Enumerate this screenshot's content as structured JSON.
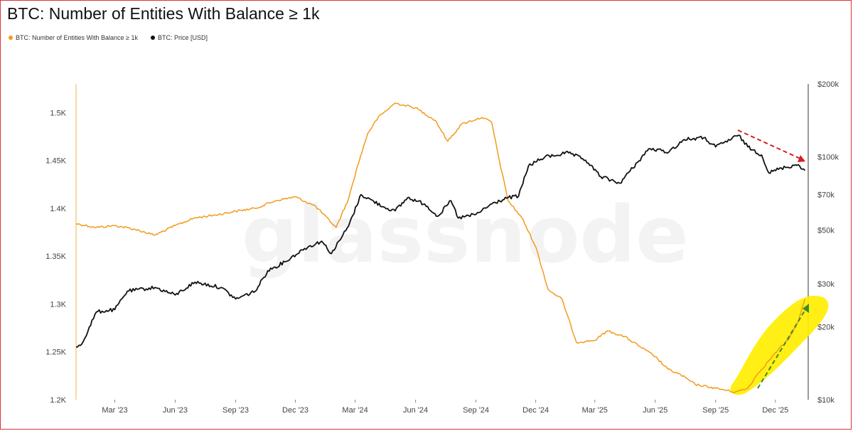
{
  "title": "BTC: Number of Entities With Balance ≥ 1k",
  "watermark": "glassnode",
  "legend": [
    {
      "label": "BTC: Number of Entities With Balance ≥ 1k",
      "color": "#f29a1d"
    },
    {
      "label": "BTC: Price [USD]",
      "color": "#111111"
    }
  ],
  "chart_data": {
    "type": "line",
    "title": "BTC: Number of Entities With Balance ≥ 1k",
    "x_ticks": [
      "Mar '23",
      "Jun '23",
      "Sep '23",
      "Dec '23",
      "Mar '24",
      "Jun '24",
      "Sep '24",
      "Dec '24",
      "Mar '25",
      "Jun '25",
      "Sep '25",
      "Dec '25"
    ],
    "x_range": [
      "2023-01-01",
      "2026-01-20"
    ],
    "y_left": {
      "ticks": [
        "1.2K",
        "1.25K",
        "1.3K",
        "1.35K",
        "1.4K",
        "1.45K",
        "1.5K"
      ],
      "values": [
        1200,
        1250,
        1300,
        1350,
        1400,
        1450,
        1500
      ],
      "range": [
        1200,
        1530
      ]
    },
    "y_right": {
      "ticks": [
        "$10k",
        "$20k",
        "$30k",
        "$50k",
        "$70k",
        "$100k",
        "$200k"
      ],
      "values": [
        10000,
        20000,
        30000,
        50000,
        70000,
        100000,
        200000
      ],
      "scale": "log",
      "range": [
        10000,
        200000
      ]
    },
    "series": [
      {
        "name": "BTC: Number of Entities With Balance ≥ 1k",
        "axis": "left",
        "color": "#f29a1d",
        "x": [
          "2023-01-01",
          "2023-02-01",
          "2023-03-01",
          "2023-04-01",
          "2023-05-01",
          "2023-06-01",
          "2023-07-01",
          "2023-08-01",
          "2023-09-01",
          "2023-10-01",
          "2023-11-01",
          "2023-12-01",
          "2024-01-01",
          "2024-02-01",
          "2024-02-20",
          "2024-03-05",
          "2024-03-20",
          "2024-04-05",
          "2024-05-01",
          "2024-06-01",
          "2024-07-01",
          "2024-07-20",
          "2024-08-10",
          "2024-09-10",
          "2024-09-25",
          "2024-10-05",
          "2024-10-20",
          "2024-11-10",
          "2024-12-01",
          "2024-12-20",
          "2025-01-10",
          "2025-02-01",
          "2025-03-01",
          "2025-03-20",
          "2025-04-15",
          "2025-05-10",
          "2025-06-01",
          "2025-06-20",
          "2025-07-10",
          "2025-08-01",
          "2025-09-01",
          "2025-10-01",
          "2025-10-20",
          "2025-11-05",
          "2025-11-20",
          "2025-12-05",
          "2025-12-20",
          "2026-01-05",
          "2026-01-15"
        ],
        "y": [
          1384,
          1380,
          1382,
          1378,
          1372,
          1382,
          1390,
          1393,
          1397,
          1400,
          1408,
          1412,
          1402,
          1380,
          1410,
          1445,
          1478,
          1495,
          1510,
          1505,
          1492,
          1470,
          1488,
          1495,
          1490,
          1455,
          1408,
          1390,
          1360,
          1315,
          1305,
          1260,
          1262,
          1272,
          1266,
          1255,
          1245,
          1232,
          1226,
          1216,
          1212,
          1208,
          1212,
          1228,
          1240,
          1252,
          1262,
          1282,
          1305
        ]
      },
      {
        "name": "BTC: Price [USD]",
        "axis": "right",
        "color": "#111111",
        "x": [
          "2023-01-01",
          "2023-01-10",
          "2023-02-01",
          "2023-03-01",
          "2023-03-20",
          "2023-05-01",
          "2023-06-01",
          "2023-07-01",
          "2023-08-10",
          "2023-09-01",
          "2023-10-01",
          "2023-10-20",
          "2023-11-15",
          "2023-12-15",
          "2024-01-10",
          "2024-01-25",
          "2024-02-20",
          "2024-03-10",
          "2024-04-15",
          "2024-05-01",
          "2024-05-20",
          "2024-06-15",
          "2024-07-05",
          "2024-07-25",
          "2024-08-05",
          "2024-09-01",
          "2024-09-25",
          "2024-10-20",
          "2024-11-05",
          "2024-11-20",
          "2024-12-15",
          "2025-01-20",
          "2025-02-15",
          "2025-03-10",
          "2025-04-08",
          "2025-05-05",
          "2025-05-22",
          "2025-06-22",
          "2025-07-15",
          "2025-08-14",
          "2025-09-01",
          "2025-10-06",
          "2025-10-20",
          "2025-11-10",
          "2025-11-21",
          "2025-12-10",
          "2026-01-05",
          "2026-01-15"
        ],
        "y": [
          16500,
          17000,
          23000,
          23500,
          28000,
          29000,
          27000,
          30500,
          29000,
          26000,
          28000,
          34000,
          37000,
          42000,
          45000,
          40000,
          52000,
          70000,
          62000,
          60000,
          68000,
          64000,
          57000,
          66000,
          56000,
          58000,
          64000,
          68000,
          69000,
          92000,
          100000,
          104000,
          97000,
          83000,
          78000,
          95000,
          108000,
          105000,
          118000,
          120000,
          110000,
          123000,
          110000,
          102000,
          86000,
          90000,
          93000,
          88000
        ]
      }
    ]
  }
}
